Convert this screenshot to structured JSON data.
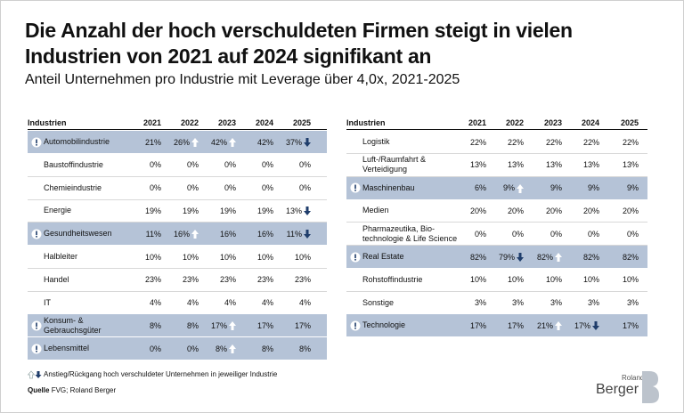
{
  "header": {
    "title_line1": "Die Anzahl der hoch verschuldeten Firmen steigt in vielen",
    "title_line2": "Industrien von 2021 auf 2024 signifikant an",
    "subtitle": "Anteil Unternehmen pro Industrie mit Leverage über 4,0x, 2021-2025"
  },
  "tables": [
    {
      "columns": [
        "Industrien",
        "2021",
        "2022",
        "2023",
        "2024",
        "2025"
      ],
      "rows": [
        {
          "name": "Automobilindustrie",
          "highlight": true,
          "values": [
            "21%",
            "26%",
            "42%",
            "42%",
            "37%"
          ],
          "trends": [
            null,
            "up",
            "up",
            null,
            "down"
          ]
        },
        {
          "name": "Baustoffindustrie",
          "highlight": false,
          "values": [
            "0%",
            "0%",
            "0%",
            "0%",
            "0%"
          ],
          "trends": [
            null,
            null,
            null,
            null,
            null
          ]
        },
        {
          "name": "Chemieindustrie",
          "highlight": false,
          "values": [
            "0%",
            "0%",
            "0%",
            "0%",
            "0%"
          ],
          "trends": [
            null,
            null,
            null,
            null,
            null
          ]
        },
        {
          "name": "Energie",
          "highlight": false,
          "values": [
            "19%",
            "19%",
            "19%",
            "19%",
            "13%"
          ],
          "trends": [
            null,
            null,
            null,
            null,
            "down"
          ]
        },
        {
          "name": "Gesundheitswesen",
          "highlight": true,
          "values": [
            "11%",
            "16%",
            "16%",
            "16%",
            "11%"
          ],
          "trends": [
            null,
            "up",
            null,
            null,
            "down"
          ]
        },
        {
          "name": "Halbleiter",
          "highlight": false,
          "values": [
            "10%",
            "10%",
            "10%",
            "10%",
            "10%"
          ],
          "trends": [
            null,
            null,
            null,
            null,
            null
          ]
        },
        {
          "name": "Handel",
          "highlight": false,
          "values": [
            "23%",
            "23%",
            "23%",
            "23%",
            "23%"
          ],
          "trends": [
            null,
            null,
            null,
            null,
            null
          ]
        },
        {
          "name": "IT",
          "highlight": false,
          "values": [
            "4%",
            "4%",
            "4%",
            "4%",
            "4%"
          ],
          "trends": [
            null,
            null,
            null,
            null,
            null
          ]
        },
        {
          "name": "Konsum- & Gebrauchsgüter",
          "highlight": true,
          "values": [
            "8%",
            "8%",
            "17%",
            "17%",
            "17%"
          ],
          "trends": [
            null,
            null,
            "up",
            null,
            null
          ]
        },
        {
          "name": "Lebensmittel",
          "highlight": true,
          "values": [
            "0%",
            "0%",
            "8%",
            "8%",
            "8%"
          ],
          "trends": [
            null,
            null,
            "up",
            null,
            null
          ]
        }
      ]
    },
    {
      "columns": [
        "Industrien",
        "2021",
        "2022",
        "2023",
        "2024",
        "2025"
      ],
      "rows": [
        {
          "name": "Logistik",
          "highlight": false,
          "values": [
            "22%",
            "22%",
            "22%",
            "22%",
            "22%"
          ],
          "trends": [
            null,
            null,
            null,
            null,
            null
          ]
        },
        {
          "name": "Luft-/Raumfahrt & Verteidigung",
          "highlight": false,
          "values": [
            "13%",
            "13%",
            "13%",
            "13%",
            "13%"
          ],
          "trends": [
            null,
            null,
            null,
            null,
            null
          ]
        },
        {
          "name": "Maschinenbau",
          "highlight": true,
          "values": [
            "6%",
            "9%",
            "9%",
            "9%",
            "9%"
          ],
          "trends": [
            null,
            "up",
            null,
            null,
            null
          ]
        },
        {
          "name": "Medien",
          "highlight": false,
          "values": [
            "20%",
            "20%",
            "20%",
            "20%",
            "20%"
          ],
          "trends": [
            null,
            null,
            null,
            null,
            null
          ]
        },
        {
          "name": "Pharmazeutika, Bio-technologie & Life Science",
          "highlight": false,
          "values": [
            "0%",
            "0%",
            "0%",
            "0%",
            "0%"
          ],
          "trends": [
            null,
            null,
            null,
            null,
            null
          ]
        },
        {
          "name": "Real Estate",
          "highlight": true,
          "values": [
            "82%",
            "79%",
            "82%",
            "82%",
            "82%"
          ],
          "trends": [
            null,
            "down",
            "up",
            null,
            null
          ]
        },
        {
          "name": "Rohstoffindustrie",
          "highlight": false,
          "values": [
            "10%",
            "10%",
            "10%",
            "10%",
            "10%"
          ],
          "trends": [
            null,
            null,
            null,
            null,
            null
          ]
        },
        {
          "name": "Sonstige",
          "highlight": false,
          "values": [
            "3%",
            "3%",
            "3%",
            "3%",
            "3%"
          ],
          "trends": [
            null,
            null,
            null,
            null,
            null
          ]
        },
        {
          "name": "Technologie",
          "highlight": true,
          "values": [
            "17%",
            "17%",
            "21%",
            "17%",
            "17%"
          ],
          "trends": [
            null,
            null,
            "up",
            "down",
            null
          ]
        }
      ]
    }
  ],
  "footer": {
    "legend": "Anstieg/Rückgang hoch verschuldeter Unternehmen in jeweiliger Industrie",
    "source_label": "Quelle",
    "source": "FVG; Roland Berger",
    "logo_line1": "Roland",
    "logo_line2": "Berger"
  }
}
